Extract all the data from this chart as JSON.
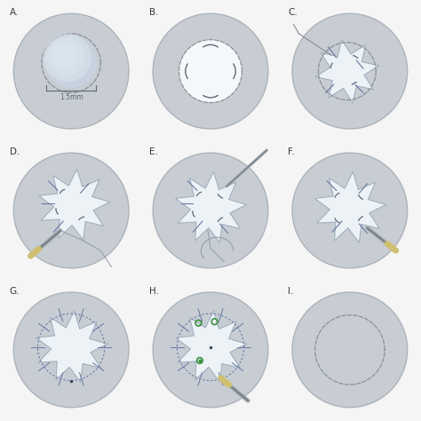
{
  "bg_color": "#f5f5f5",
  "outer_circle_facecolor": "#c8cdd4",
  "outer_circle_edgecolor": "#adb3ba",
  "outer_circle_lw": 1.0,
  "outer_r": 0.43,
  "inner_white": "#f0f4f8",
  "dashed_circle_color": "#8a9098",
  "starburst_color": "#edf2f6",
  "starburst_edge_color": "#9aabba",
  "suture_color": "#606878",
  "suture_blue": "#6878a0",
  "needle_shaft_color": "#a8b0b8",
  "needle_dark": "#787e84",
  "thread_color": "#9098a8",
  "yellow_handle": "#cfc070",
  "green_color": "#3a9040",
  "label_color": "#383838",
  "label_fontsize": 7.5,
  "measure_color": "#606870",
  "panels": [
    "A.",
    "B.",
    "C.",
    "D.",
    "E.",
    "F.",
    "G.",
    "H.",
    "I."
  ]
}
